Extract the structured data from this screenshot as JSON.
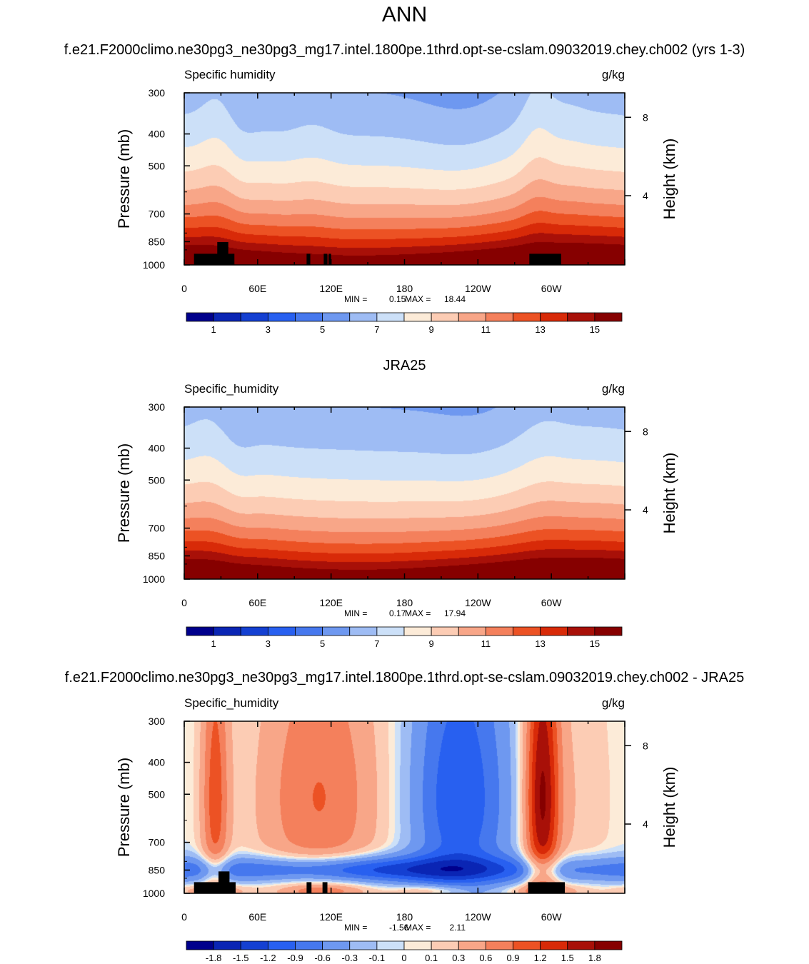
{
  "figure": {
    "title": "ANN"
  },
  "chart_data": [
    {
      "type": "heatmap",
      "title": "f.e21.F2000climo.ne30pg3_ne30pg3_mg17.intel.1800pe.1thrd.opt-se-cslam.09032019.chey.ch002 (yrs 1-3)",
      "left_label": "Specific humidity",
      "right_label": "g/kg",
      "ylabel": "Pressure (mb)",
      "ylabel_right": "Height (km)",
      "x_ticks": [
        "0",
        "60E",
        "120E",
        "180",
        "120W",
        "60W"
      ],
      "x_tick_lon": [
        0,
        60,
        120,
        180,
        240,
        300
      ],
      "xlim": [
        0,
        360
      ],
      "y_ticks": [
        "300",
        "400",
        "500",
        "700",
        "850",
        "1000"
      ],
      "y_tick_values": [
        300,
        400,
        500,
        700,
        850,
        1000
      ],
      "ylim": [
        1000,
        300
      ],
      "y_scale": "log",
      "height_ticks": [
        "8",
        "4"
      ],
      "min_label": "MIN =",
      "min_value": "0.15",
      "max_label": "MAX =",
      "max_value": "18.44",
      "colorbar": {
        "colors": [
          "#00008c",
          "#0a25b4",
          "#1440d2",
          "#2860f0",
          "#4678ee",
          "#6e98f0",
          "#9ebcf4",
          "#cce0f8",
          "#fcebd8",
          "#fcccb4",
          "#f8a688",
          "#f4805c",
          "#ec5224",
          "#d82a08",
          "#a81008",
          "#860000"
        ],
        "tick_labels": [
          "1",
          "3",
          "5",
          "7",
          "9",
          "11",
          "13",
          "15"
        ],
        "tick_positions": [
          1,
          3,
          5,
          7,
          9,
          11,
          13,
          15
        ]
      }
    },
    {
      "type": "heatmap",
      "title": "JRA25",
      "left_label": "Specific_humidity",
      "right_label": "g/kg",
      "ylabel": "Pressure (mb)",
      "ylabel_right": "Height (km)",
      "x_ticks": [
        "0",
        "60E",
        "120E",
        "180",
        "120W",
        "60W"
      ],
      "x_tick_lon": [
        0,
        60,
        120,
        180,
        240,
        300
      ],
      "xlim": [
        0,
        360
      ],
      "y_ticks": [
        "300",
        "400",
        "500",
        "700",
        "850",
        "1000"
      ],
      "y_tick_values": [
        300,
        400,
        500,
        700,
        850,
        1000
      ],
      "ylim": [
        1000,
        300
      ],
      "y_scale": "log",
      "height_ticks": [
        "8",
        "4"
      ],
      "min_label": "MIN =",
      "min_value": "0.17",
      "max_label": "MAX =",
      "max_value": "17.94",
      "colorbar": {
        "colors": [
          "#00008c",
          "#0a25b4",
          "#1440d2",
          "#2860f0",
          "#4678ee",
          "#6e98f0",
          "#9ebcf4",
          "#cce0f8",
          "#fcebd8",
          "#fcccb4",
          "#f8a688",
          "#f4805c",
          "#ec5224",
          "#d82a08",
          "#a81008",
          "#860000"
        ],
        "tick_labels": [
          "1",
          "3",
          "5",
          "7",
          "9",
          "11",
          "13",
          "15"
        ],
        "tick_positions": [
          1,
          3,
          5,
          7,
          9,
          11,
          13,
          15
        ]
      }
    },
    {
      "type": "heatmap",
      "title": "f.e21.F2000climo.ne30pg3_ne30pg3_mg17.intel.1800pe.1thrd.opt-se-cslam.09032019.chey.ch002 - JRA25",
      "left_label": "Specific_humidity",
      "right_label": "g/kg",
      "ylabel": "Pressure (mb)",
      "ylabel_right": "Height (km)",
      "x_ticks": [
        "0",
        "60E",
        "120E",
        "180",
        "120W",
        "60W"
      ],
      "x_tick_lon": [
        0,
        60,
        120,
        180,
        240,
        300
      ],
      "xlim": [
        0,
        360
      ],
      "y_ticks": [
        "300",
        "400",
        "500",
        "700",
        "850",
        "1000"
      ],
      "y_tick_values": [
        300,
        400,
        500,
        700,
        850,
        1000
      ],
      "ylim": [
        1000,
        300
      ],
      "y_scale": "log",
      "height_ticks": [
        "8",
        "4"
      ],
      "min_label": "MIN =",
      "min_value": "-1.56",
      "max_label": "MAX =",
      "max_value": "2.11",
      "colorbar": {
        "colors": [
          "#00008c",
          "#0a25b4",
          "#1440d2",
          "#2860f0",
          "#4678ee",
          "#6e98f0",
          "#9ebcf4",
          "#cce0f8",
          "#fcebd8",
          "#fcccb4",
          "#f8a688",
          "#f4805c",
          "#ec5224",
          "#d82a08",
          "#a81008",
          "#860000"
        ],
        "tick_labels": [
          "-1.8",
          "-1.5",
          "-1.2",
          "-0.9",
          "-0.6",
          "-0.3",
          "-0.1",
          "0",
          "0.1",
          "0.3",
          "0.6",
          "0.9",
          "1.2",
          "1.5",
          "1.8"
        ],
        "tick_positions": [
          1,
          2,
          3,
          4,
          5,
          6,
          7,
          8,
          9,
          10,
          11,
          12,
          13,
          14,
          15
        ]
      }
    }
  ]
}
